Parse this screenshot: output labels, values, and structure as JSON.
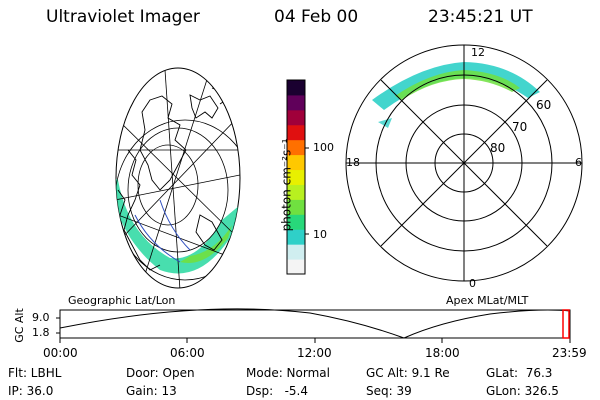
{
  "header": {
    "instrument": "Ultraviolet Imager",
    "date": "04 Feb 00",
    "time": "23:45:21 UT"
  },
  "colorbar": {
    "unit_label": "photon cm⁻²s⁻¹",
    "ticks": [
      "100",
      "10"
    ],
    "colors": [
      "#f4f4f4",
      "#d0eef0",
      "#2fd0c8",
      "#28d87a",
      "#70e040",
      "#b8f020",
      "#e8f000",
      "#ffc800",
      "#ff7000",
      "#e01010",
      "#a0003a",
      "#60005a",
      "#1a0030"
    ]
  },
  "geo_panel": {
    "label": "Geographic Lat/Lon"
  },
  "polar_panel": {
    "label": "Apex MLat/MLT",
    "mlt_labels": [
      "12",
      "18",
      "6",
      "0"
    ],
    "lat_labels": [
      "60",
      "70",
      "80"
    ]
  },
  "timeline": {
    "axis_label": "GC Alt",
    "y_ticks": [
      "9.0",
      "1.8"
    ],
    "x_ticks": [
      "00:00",
      "06:00",
      "12:00",
      "18:00",
      "23:59"
    ],
    "current_marker_color": "#ff0000"
  },
  "info": {
    "flt": "Flt: LBHL",
    "ip": "IP: 36.0",
    "door": "Door: Open",
    "gain": "Gain: 13",
    "mode": "Mode: Normal",
    "dsp": "Dsp:   -5.4",
    "gc_alt": "GC Alt: 9.1 Re",
    "seq": "Seq: 39",
    "glat": "GLat:  76.3",
    "glon": "GLon: 326.5"
  }
}
